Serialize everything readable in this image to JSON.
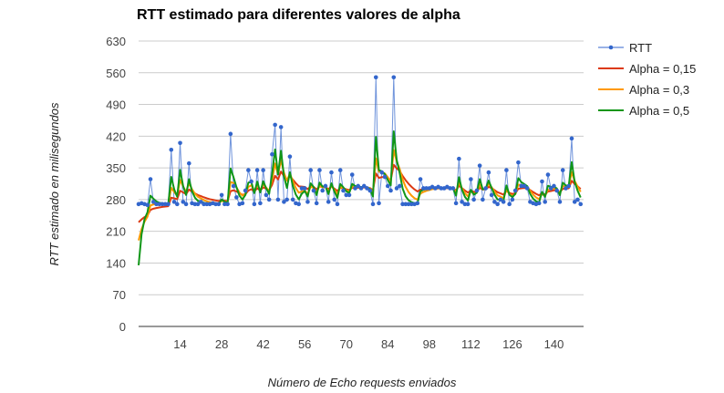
{
  "chart_data": {
    "type": "line",
    "title": "RTT estimado para diferentes valores de alpha",
    "xlabel": "Número de Echo requests enviados",
    "ylabel": "RTT estimado en milisegundos",
    "ylim": [
      0,
      630
    ],
    "yticks": [
      0,
      70,
      140,
      210,
      280,
      350,
      420,
      490,
      560,
      630
    ],
    "xlim": [
      0,
      150
    ],
    "xticks": [
      14,
      28,
      42,
      56,
      70,
      84,
      98,
      112,
      126,
      140
    ],
    "grid": true,
    "legend_position": "right",
    "rtt": [
      270,
      272,
      270,
      268,
      325,
      275,
      270,
      270,
      270,
      270,
      270,
      390,
      275,
      270,
      405,
      275,
      270,
      360,
      272,
      270,
      270,
      275,
      270,
      270,
      270,
      272,
      270,
      270,
      290,
      270,
      270,
      425,
      310,
      285,
      270,
      272,
      300,
      345,
      320,
      270,
      345,
      272,
      345,
      290,
      280,
      380,
      445,
      280,
      440,
      275,
      280,
      375,
      280,
      272,
      270,
      305,
      305,
      275,
      345,
      300,
      272,
      345,
      300,
      310,
      275,
      340,
      280,
      270,
      345,
      300,
      290,
      290,
      335,
      305,
      310,
      305,
      310,
      305,
      300,
      270,
      550,
      272,
      340,
      330,
      310,
      300,
      550,
      305,
      310,
      270,
      270,
      270,
      270,
      270,
      272,
      325,
      305,
      305,
      305,
      308,
      305,
      308,
      305,
      305,
      308,
      305,
      305,
      272,
      370,
      275,
      270,
      270,
      325,
      280,
      300,
      355,
      280,
      305,
      340,
      290,
      275,
      270,
      280,
      275,
      345,
      270,
      280,
      300,
      362,
      310,
      310,
      305,
      275,
      272,
      270,
      272,
      320,
      275,
      335,
      305,
      310,
      300,
      275,
      345,
      305,
      310,
      415,
      275,
      280,
      270
    ],
    "series": [
      {
        "name": "RTT",
        "color": "#3366cc"
      },
      {
        "name": "Alpha = 0,15",
        "color": "#dc3912",
        "alpha": 0.15,
        "initial": 230
      },
      {
        "name": "Alpha = 0,3",
        "color": "#ff9900",
        "alpha": 0.3,
        "initial": 190
      },
      {
        "name": "Alpha = 0,5",
        "color": "#109618",
        "alpha": 0.5,
        "initial": 135
      }
    ]
  }
}
